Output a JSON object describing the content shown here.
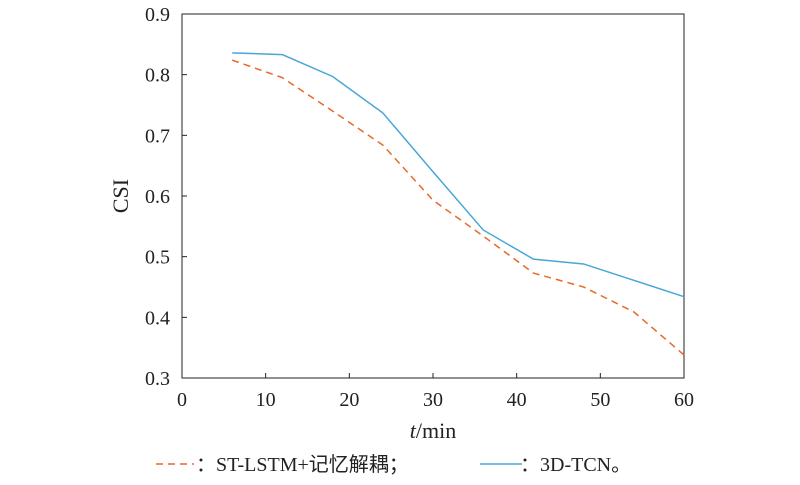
{
  "chart_data": {
    "type": "line",
    "title": "",
    "xlabel_italic": "t",
    "xlabel_rest": "/min",
    "ylabel": "CSI",
    "xlim": [
      0,
      60
    ],
    "ylim": [
      0.3,
      0.9
    ],
    "xticks": [
      0,
      10,
      20,
      30,
      40,
      50,
      60
    ],
    "yticks": [
      0.3,
      0.4,
      0.5,
      0.6,
      0.7,
      0.8,
      0.9
    ],
    "ytick_labels": [
      "0.3",
      "0.4",
      "0.5",
      "0.6",
      "0.7",
      "0.8",
      "0.9"
    ],
    "grid": false,
    "legend_position": "bottom",
    "x": [
      6,
      12,
      18,
      24,
      30,
      36,
      42,
      48,
      54,
      60
    ],
    "series": [
      {
        "name": "：ST-LSTM+记忆解耦；",
        "color": "#e8692a",
        "dash": "dashed",
        "values": [
          0.824,
          0.795,
          0.74,
          0.684,
          0.593,
          0.534,
          0.473,
          0.45,
          0.409,
          0.338
        ]
      },
      {
        "name": "：3D-TCN。",
        "color": "#4aa6d8",
        "dash": "solid",
        "values": [
          0.836,
          0.833,
          0.797,
          0.737,
          0.64,
          0.544,
          0.496,
          0.488,
          0.461,
          0.434
        ]
      }
    ]
  }
}
